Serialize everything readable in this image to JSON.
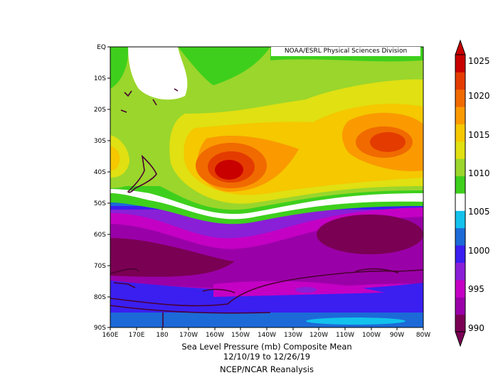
{
  "credit": "NOAA/ESRL Physical Sciences Division",
  "title": "Sea Level Pressure (mb) Composite Mean",
  "date_range": "12/10/19  to 12/26/19",
  "source": "NCEP/NCAR Reanalysis",
  "lat_labels": [
    "EQ",
    "10S",
    "20S",
    "30S",
    "40S",
    "50S",
    "60S",
    "70S",
    "80S",
    "90S"
  ],
  "lon_labels": [
    "160E",
    "170E",
    "180",
    "170W",
    "160W",
    "150W",
    "140W",
    "130W",
    "120W",
    "110W",
    "100W",
    "90W",
    "80W"
  ],
  "colorbar": {
    "ticks": [
      "1025",
      "1020",
      "1015",
      "1010",
      "1005",
      "1000",
      "995",
      "990"
    ],
    "colors": [
      "#7a0054",
      "#9a00a8",
      "#c400c4",
      "#8a1fd8",
      "#3a1ff0",
      "#1c6ad8",
      "#12c2ec",
      "#ffffff",
      "#3ecf1c",
      "#9ad62c",
      "#e0e012",
      "#f5c800",
      "#fa9a00",
      "#f06a00",
      "#e43c00",
      "#c80000"
    ]
  },
  "chart_data": {
    "type": "heatmap",
    "title": "Sea Level Pressure (mb) Composite Mean",
    "subtitle": "12/10/19  to 12/26/19",
    "xlabel": "",
    "ylabel": "",
    "x_range": [
      "160E",
      "80W"
    ],
    "y_range": [
      "EQ",
      "90S"
    ],
    "colorbar_range": [
      990,
      1025
    ],
    "colorbar_step": 2.5,
    "features": [
      {
        "kind": "high",
        "near": [
          "150W",
          "40S"
        ],
        "value_mb": 1025
      },
      {
        "kind": "high",
        "near": [
          "90W",
          "33S"
        ],
        "value_mb": 1022.5
      },
      {
        "kind": "low",
        "near": [
          "170E",
          "67S"
        ],
        "value_mb": 990
      },
      {
        "kind": "low",
        "near": [
          "90W",
          "62S"
        ],
        "value_mb": 990
      }
    ]
  }
}
